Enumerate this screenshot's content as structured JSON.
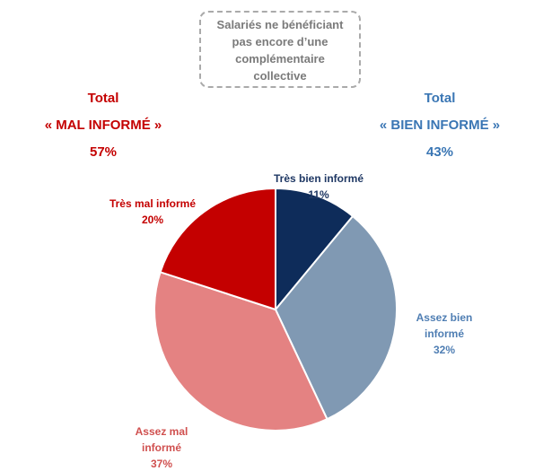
{
  "chart_data": {
    "type": "pie",
    "categories": [
      "Très bien informé",
      "Assez bien informé",
      "Assez mal informé",
      "Très mal informé"
    ],
    "values": [
      11,
      32,
      37,
      20
    ],
    "value_labels": [
      "11%",
      "32%",
      "37%",
      "20%"
    ],
    "colors": [
      "#0e2c5a",
      "#8099b3",
      "#e48282",
      "#c40000"
    ],
    "label_colors": [
      "#1f3864",
      "#4f7eb3",
      "#d0504f",
      "#c40000"
    ],
    "note": "Salariés ne bénéficiant pas encore d’une complémentaire collective",
    "totals": [
      {
        "label": "Total",
        "name": "« MAL INFORMÉ »",
        "value_label": "57%",
        "color": "#c40000"
      },
      {
        "label": "Total",
        "name": "« BIEN INFORMÉ »",
        "value_label": "43%",
        "color": "#3a76b4"
      }
    ]
  }
}
